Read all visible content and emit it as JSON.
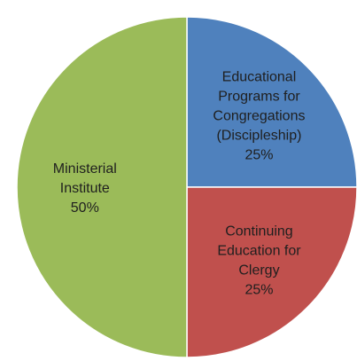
{
  "chart_data": {
    "type": "pie",
    "title": "",
    "start_angle_deg": 0,
    "direction": "clockwise",
    "slices": [
      {
        "label_lines": [
          "Educational",
          "Programs for",
          "Congregations",
          "(Discipleship)"
        ],
        "value": 25,
        "value_label": "25%",
        "color": "#4F81BD"
      },
      {
        "label_lines": [
          "Continuing",
          "Education for",
          "Clergy"
        ],
        "value": 25,
        "value_label": "25%",
        "color": "#C0504D"
      },
      {
        "label_lines": [
          "Ministerial",
          "Institute"
        ],
        "value": 50,
        "value_label": "50%",
        "color": "#9BBB59"
      }
    ]
  }
}
